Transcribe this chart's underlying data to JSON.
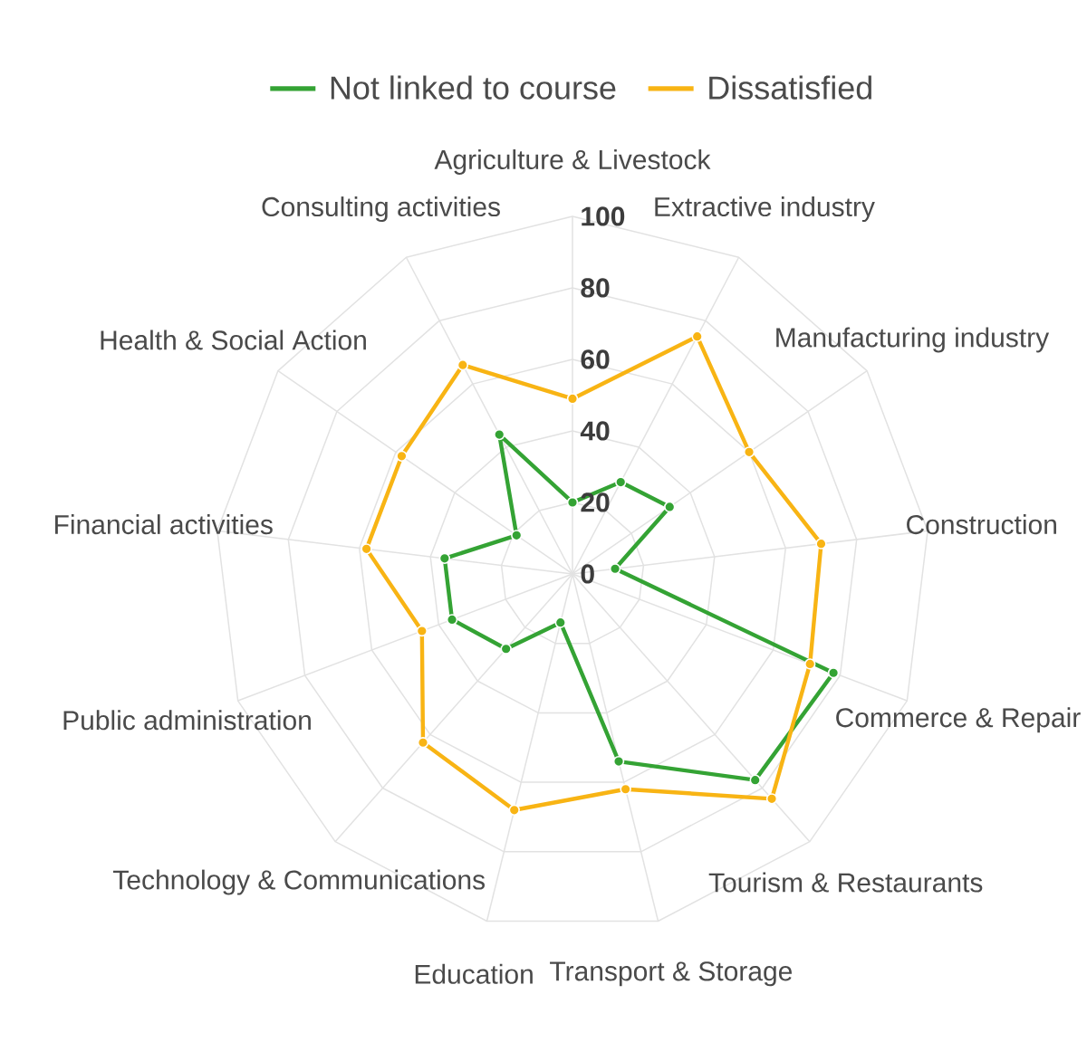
{
  "chart_data": {
    "type": "radar",
    "categories": [
      "Agriculture & Livestock",
      "Extractive industry",
      "Manufacturing industry",
      "Construction",
      "Commerce & Repair",
      "Tourism & Restaurants",
      "Transport & Storage",
      "Education",
      "Technology & Communications",
      "Public administration",
      "Financial activities",
      "Health & Social Action",
      "Consulting activities"
    ],
    "series": [
      {
        "name": "Not linked to course",
        "color": "#34a334",
        "values": [
          20,
          29,
          33,
          12,
          78,
          77,
          54,
          14,
          28,
          36,
          36,
          19,
          44
        ]
      },
      {
        "name": "Dissatisfied",
        "color": "#f8b414",
        "values": [
          49,
          75,
          60,
          70,
          71,
          84,
          62,
          68,
          63,
          45,
          58,
          58,
          66
        ]
      }
    ],
    "ylim": [
      0,
      100
    ],
    "yticks": [
      0,
      20,
      40,
      60,
      80,
      100
    ],
    "grid": true,
    "legend": "top",
    "marker": "circle"
  }
}
